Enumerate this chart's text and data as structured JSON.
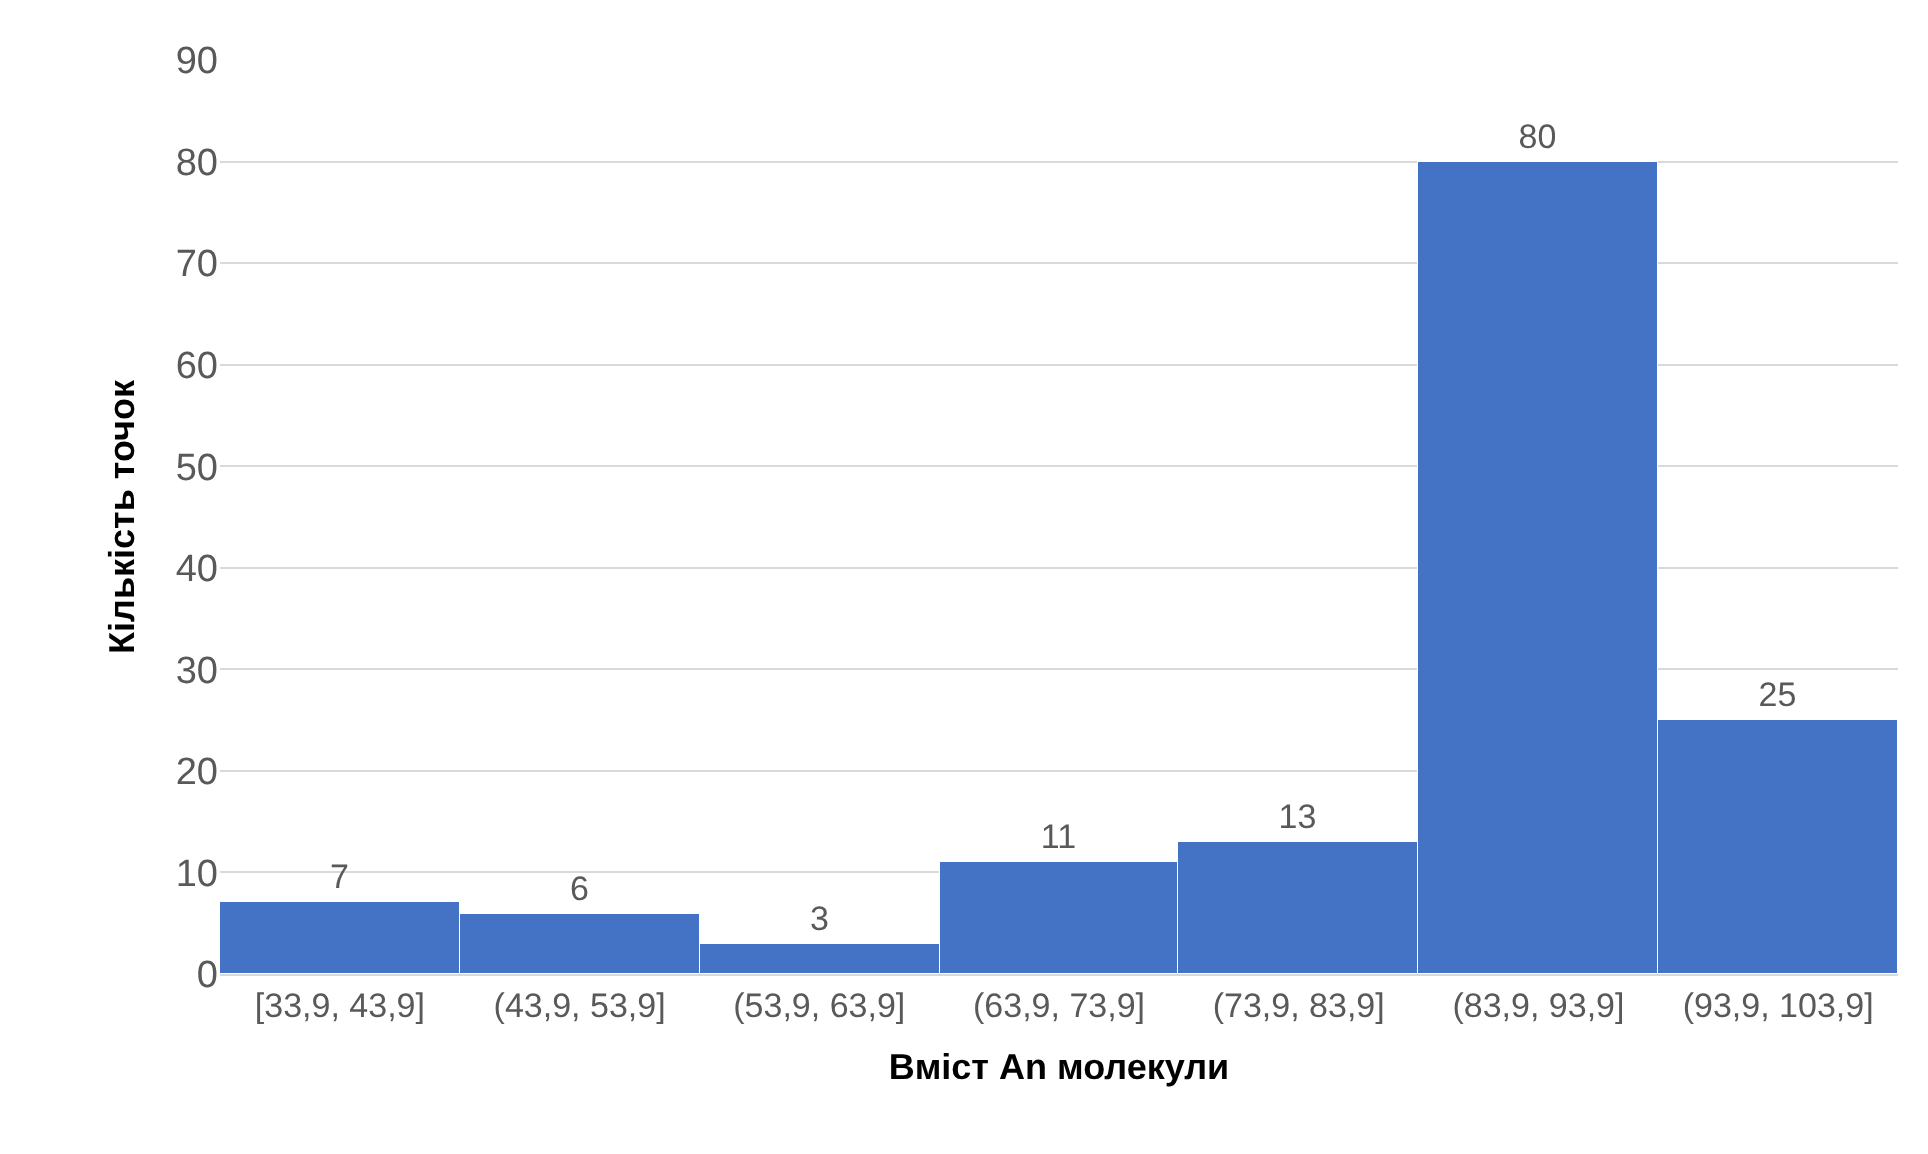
{
  "chart_data": {
    "type": "bar",
    "xlabel": "Вміст An молекули",
    "ylabel": "Кількість точок",
    "categories": [
      "[33,9, 43,9]",
      "(43,9, 53,9]",
      "(53,9, 63,9]",
      "(63,9, 73,9]",
      "(73,9, 83,9]",
      "(83,9, 93,9]",
      "(93,9, 103,9]"
    ],
    "values": [
      7,
      6,
      3,
      11,
      13,
      80,
      25
    ],
    "color": "#4472c4",
    "ylim": [
      0,
      90
    ],
    "yticks": [
      0,
      10,
      20,
      30,
      40,
      50,
      60,
      70,
      80,
      90
    ],
    "grid": "y",
    "data_labels": true
  }
}
